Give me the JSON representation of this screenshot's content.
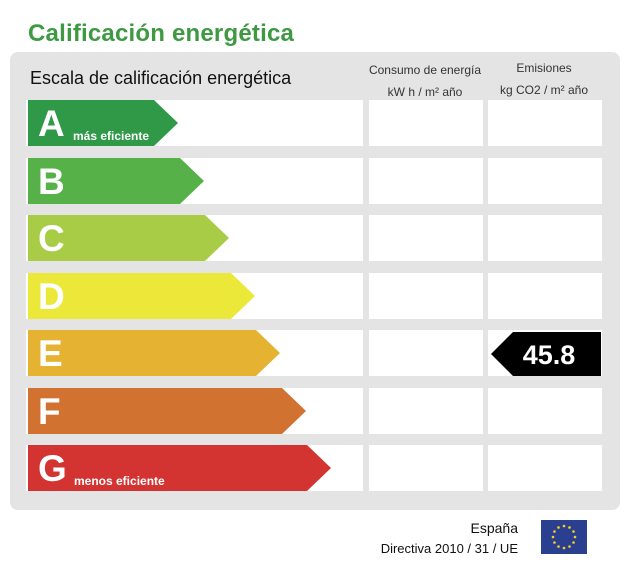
{
  "title": "Calificación energética",
  "scale_label": "Escala de calificación energética",
  "columns": {
    "consumo_line1": "Consumo de energía",
    "consumo_line2": "kW h / m² año",
    "emisiones_line1": "Emisiones",
    "emisiones_line2": "kg CO2 / m² año"
  },
  "ratings": [
    {
      "letter": "A",
      "note": "más eficiente",
      "color": "#2f9948"
    },
    {
      "letter": "B",
      "note": "",
      "color": "#56b248"
    },
    {
      "letter": "C",
      "note": "",
      "color": "#a8cc46"
    },
    {
      "letter": "D",
      "note": "",
      "color": "#ebe83a"
    },
    {
      "letter": "E",
      "note": "",
      "color": "#e5b232"
    },
    {
      "letter": "F",
      "note": "",
      "color": "#d27231"
    },
    {
      "letter": "G",
      "note": "menos eficiente",
      "color": "#d33331"
    }
  ],
  "emissions_value": "45.8",
  "emissions_rating": "E",
  "footer": {
    "country": "España",
    "directive": "Directiva 2010 / 31 / UE",
    "flag_icon": "eu-flag-icon"
  }
}
